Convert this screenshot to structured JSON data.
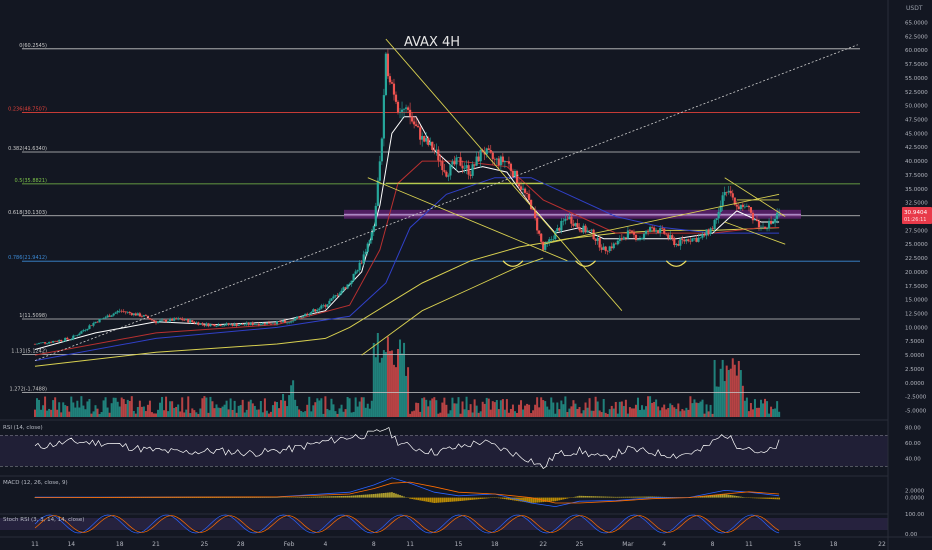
{
  "chart_data": {
    "type": "candlestick",
    "title": "AVAX 4H",
    "currency_label": "USDT",
    "price_axis_ticks": [
      65,
      62.5,
      60,
      57.5,
      55,
      52.5,
      50,
      47.5,
      45,
      42.5,
      40,
      37.5,
      35,
      32.5,
      30,
      27.5,
      25,
      22.5,
      20,
      17.5,
      15,
      12.5,
      10,
      7.5,
      5,
      2.5,
      0,
      -2.5,
      -5
    ],
    "price_axis_tick_labels": [
      "65.0000",
      "62.5000",
      "60.0000",
      "57.5000",
      "55.0000",
      "52.5000",
      "50.0000",
      "47.5000",
      "45.0000",
      "42.5000",
      "40.0000",
      "37.5000",
      "35.0000",
      "32.5000",
      "30.0000",
      "27.5000",
      "25.0000",
      "22.5000",
      "20.0000",
      "17.5000",
      "15.0000",
      "12.5000",
      "10.0000",
      "7.5000",
      "5.0000",
      "2.5000",
      "0.0000",
      "-2.5000",
      "-5.0000"
    ],
    "last_price": {
      "label": "30.9404",
      "countdown": "01:26:11",
      "value": 30.94
    },
    "time_axis": [
      {
        "label": "11",
        "day": 0
      },
      {
        "label": "14",
        "day": 3
      },
      {
        "label": "18",
        "day": 7
      },
      {
        "label": "21",
        "day": 10
      },
      {
        "label": "25",
        "day": 14
      },
      {
        "label": "28",
        "day": 17
      },
      {
        "label": "Feb",
        "day": 21
      },
      {
        "label": "4",
        "day": 24
      },
      {
        "label": "8",
        "day": 28
      },
      {
        "label": "11",
        "day": 31
      },
      {
        "label": "15",
        "day": 35
      },
      {
        "label": "18",
        "day": 38
      },
      {
        "label": "22",
        "day": 42
      },
      {
        "label": "25",
        "day": 45
      },
      {
        "label": "Mar",
        "day": 49
      },
      {
        "label": "4",
        "day": 52
      },
      {
        "label": "8",
        "day": 56
      },
      {
        "label": "11",
        "day": 59
      },
      {
        "label": "15",
        "day": 63
      },
      {
        "label": "18",
        "day": 66
      },
      {
        "label": "22",
        "day": 70
      }
    ],
    "fib_levels": [
      {
        "label": "0(60.2545)",
        "value": 60.25,
        "color": "#c8c8c8"
      },
      {
        "label": "0.236(48.7507)",
        "value": 48.75,
        "color": "#e0413a"
      },
      {
        "label": "0.382(41.6340)",
        "value": 41.63,
        "color": "#c8c8c8"
      },
      {
        "label": "0.5(35.8821)",
        "value": 35.88,
        "color": "#7cc24a"
      },
      {
        "label": "0.618(30.1303)",
        "value": 30.13,
        "color": "#d0d0d0"
      },
      {
        "label": "0.786(21.9412)",
        "value": 21.94,
        "color": "#3c8ad6"
      },
      {
        "label": "1(11.5098)",
        "value": 11.51,
        "color": "#c8c8c8"
      },
      {
        "label": "1.131(5.1242)",
        "value": 5.12,
        "color": "#c8c8c8"
      },
      {
        "label": "1.272(-1.7488)",
        "value": -1.75,
        "color": "#c8c8c8"
      }
    ],
    "price_series_close": [
      [
        0,
        7
      ],
      [
        3,
        8
      ],
      [
        5,
        11
      ],
      [
        7,
        13
      ],
      [
        9,
        12
      ],
      [
        10,
        11
      ],
      [
        12,
        11.5
      ],
      [
        14,
        10.5
      ],
      [
        17,
        10.5
      ],
      [
        21,
        11
      ],
      [
        24,
        14
      ],
      [
        26,
        18
      ],
      [
        27,
        22
      ],
      [
        28,
        28
      ],
      [
        28.7,
        45
      ],
      [
        29,
        58
      ],
      [
        29.5,
        54
      ],
      [
        30,
        50
      ],
      [
        31,
        48
      ],
      [
        32,
        44
      ],
      [
        33,
        42
      ],
      [
        34,
        38
      ],
      [
        35,
        40
      ],
      [
        36,
        38
      ],
      [
        37,
        42
      ],
      [
        38,
        40
      ],
      [
        39,
        40
      ],
      [
        40,
        36
      ],
      [
        41,
        32
      ],
      [
        42,
        24
      ],
      [
        43,
        27
      ],
      [
        44,
        30
      ],
      [
        45,
        28
      ],
      [
        46,
        27
      ],
      [
        47,
        24
      ],
      [
        48,
        25
      ],
      [
        49,
        27
      ],
      [
        50,
        26
      ],
      [
        51,
        28
      ],
      [
        52,
        27
      ],
      [
        53,
        25
      ],
      [
        54,
        26
      ],
      [
        55,
        26
      ],
      [
        56,
        28
      ],
      [
        57,
        35
      ],
      [
        58,
        32
      ],
      [
        59,
        31
      ],
      [
        60,
        28
      ],
      [
        61,
        29
      ],
      [
        61.5,
        30.94
      ]
    ],
    "ema_fast": [
      [
        0,
        6
      ],
      [
        5,
        9
      ],
      [
        10,
        11
      ],
      [
        15,
        10.5
      ],
      [
        20,
        11
      ],
      [
        24,
        13
      ],
      [
        27,
        20
      ],
      [
        28.5,
        32
      ],
      [
        29.5,
        45
      ],
      [
        30.5,
        48
      ],
      [
        31.5,
        48
      ],
      [
        33,
        42
      ],
      [
        35,
        38
      ],
      [
        37,
        39
      ],
      [
        39,
        38
      ],
      [
        41,
        32
      ],
      [
        43,
        27
      ],
      [
        45,
        28
      ],
      [
        47,
        26
      ],
      [
        50,
        26
      ],
      [
        53,
        26
      ],
      [
        56,
        27
      ],
      [
        58,
        31
      ],
      [
        60,
        29
      ],
      [
        61.5,
        29
      ]
    ],
    "ema_mid": [
      [
        0,
        5
      ],
      [
        10,
        9
      ],
      [
        20,
        10.5
      ],
      [
        26,
        14
      ],
      [
        28.5,
        24
      ],
      [
        30,
        36
      ],
      [
        32,
        40
      ],
      [
        35,
        40
      ],
      [
        39,
        39
      ],
      [
        42,
        33
      ],
      [
        45,
        30
      ],
      [
        48,
        27
      ],
      [
        52,
        27
      ],
      [
        56,
        27
      ],
      [
        60,
        28
      ],
      [
        61.5,
        28
      ]
    ],
    "ema_slow": [
      [
        0,
        4
      ],
      [
        10,
        8
      ],
      [
        20,
        10
      ],
      [
        26,
        12
      ],
      [
        29,
        18
      ],
      [
        31,
        28
      ],
      [
        34,
        34
      ],
      [
        38,
        37
      ],
      [
        41,
        37
      ],
      [
        44,
        34
      ],
      [
        48,
        30
      ],
      [
        52,
        28
      ],
      [
        56,
        27
      ],
      [
        61.5,
        27
      ]
    ],
    "ma_long": [
      [
        0,
        3
      ],
      [
        10,
        5.5
      ],
      [
        20,
        7
      ],
      [
        24,
        8
      ],
      [
        26,
        10
      ],
      [
        29,
        14
      ],
      [
        32,
        18
      ],
      [
        36,
        22
      ],
      [
        40,
        24.5
      ],
      [
        44,
        26
      ],
      [
        48,
        27
      ],
      [
        52,
        27.5
      ],
      [
        56,
        27.5
      ],
      [
        61.5,
        28
      ]
    ],
    "trendlines": [
      {
        "points": [
          [
            0,
            4
          ],
          [
            68,
            61
          ]
        ],
        "style": "dotted",
        "color": "#cfcfcf"
      },
      {
        "points": [
          [
            29,
            62
          ],
          [
            48.5,
            13
          ]
        ],
        "style": "solid",
        "color": "#d8d050"
      },
      {
        "points": [
          [
            27.5,
            37
          ],
          [
            44,
            22
          ]
        ],
        "style": "solid",
        "color": "#d8d050"
      },
      {
        "points": [
          [
            29,
            36
          ],
          [
            42,
            36
          ]
        ],
        "style": "solid",
        "color": "#d8d050"
      },
      {
        "points": [
          [
            42,
            25
          ],
          [
            61.5,
            34
          ]
        ],
        "style": "solid",
        "color": "#d8d050"
      },
      {
        "points": [
          [
            57,
            37
          ],
          [
            62,
            30
          ]
        ],
        "style": "solid",
        "color": "#d8d050"
      },
      {
        "points": [
          [
            57,
            29
          ],
          [
            62,
            25
          ]
        ],
        "style": "solid",
        "color": "#d8d050"
      },
      {
        "points": [
          [
            58,
            33
          ],
          [
            61.5,
            33
          ]
        ],
        "style": "solid",
        "color": "#d8d050"
      },
      {
        "points": [
          [
            27,
            5
          ],
          [
            32,
            13
          ],
          [
            36,
            17
          ],
          [
            40,
            21
          ],
          [
            42,
            22.5
          ]
        ],
        "style": "solid",
        "color": "#d8d050"
      }
    ],
    "arcs": [
      [
        39.5,
        22
      ],
      [
        45.5,
        22
      ],
      [
        53,
        22
      ]
    ],
    "support_band": {
      "low": 29.6,
      "high": 31.2
    },
    "volume_axis_ticks": [],
    "rsi": {
      "label": "RSI (14, close)",
      "ticks": [
        80,
        60,
        40
      ],
      "tick_labels": [
        "80.00",
        "60.00",
        "40.00"
      ],
      "upper": 70,
      "lower": 30,
      "min": 20,
      "max": 90,
      "values": [
        [
          0,
          55
        ],
        [
          3,
          62
        ],
        [
          6,
          60
        ],
        [
          9,
          52
        ],
        [
          12,
          48
        ],
        [
          15,
          50
        ],
        [
          18,
          47
        ],
        [
          21,
          52
        ],
        [
          24,
          62
        ],
        [
          26,
          68
        ],
        [
          28,
          72
        ],
        [
          29,
          80
        ],
        [
          30,
          62
        ],
        [
          31,
          55
        ],
        [
          33,
          48
        ],
        [
          35,
          55
        ],
        [
          37,
          62
        ],
        [
          39,
          50
        ],
        [
          41,
          38
        ],
        [
          42,
          28
        ],
        [
          43,
          45
        ],
        [
          45,
          50
        ],
        [
          47,
          40
        ],
        [
          49,
          52
        ],
        [
          51,
          48
        ],
        [
          53,
          44
        ],
        [
          55,
          50
        ],
        [
          57,
          72
        ],
        [
          58,
          58
        ],
        [
          59,
          55
        ],
        [
          60,
          45
        ],
        [
          61,
          52
        ],
        [
          61.5,
          60
        ]
      ]
    },
    "macd": {
      "label": "MACD (12, 26, close, 9)",
      "ticks": [
        2,
        0
      ],
      "tick_labels": [
        "2.0000",
        "0.0000"
      ],
      "min": -4,
      "max": 6,
      "macd_line": [
        [
          0,
          0.1
        ],
        [
          10,
          0.1
        ],
        [
          20,
          0.2
        ],
        [
          26,
          1.5
        ],
        [
          28,
          3.5
        ],
        [
          29.5,
          5.5
        ],
        [
          31,
          4
        ],
        [
          33,
          1.5
        ],
        [
          35,
          0.5
        ],
        [
          38,
          1
        ],
        [
          41,
          -1.5
        ],
        [
          43,
          -2.5
        ],
        [
          45,
          -1
        ],
        [
          48,
          -0.8
        ],
        [
          51,
          0
        ],
        [
          54,
          0
        ],
        [
          57,
          2
        ],
        [
          59,
          1.5
        ],
        [
          61.5,
          0.5
        ]
      ],
      "signal_line": [
        [
          0,
          0
        ],
        [
          10,
          0.1
        ],
        [
          20,
          0.2
        ],
        [
          26,
          1
        ],
        [
          28,
          2.5
        ],
        [
          29.5,
          4
        ],
        [
          31,
          4.3
        ],
        [
          33,
          3
        ],
        [
          35,
          1.5
        ],
        [
          38,
          1
        ],
        [
          41,
          0
        ],
        [
          43,
          -1.5
        ],
        [
          45,
          -1.5
        ],
        [
          48,
          -1
        ],
        [
          51,
          -0.3
        ],
        [
          54,
          0
        ],
        [
          57,
          1
        ],
        [
          59,
          1.6
        ],
        [
          61.5,
          1
        ]
      ]
    },
    "stoch_rsi": {
      "label": "Stoch RSI (3, 3, 14, 14, close)",
      "ticks": [
        100,
        0
      ],
      "tick_labels": [
        "100.00",
        "0.00"
      ],
      "upper": 80,
      "lower": 20,
      "min": 0,
      "max": 100
    }
  }
}
